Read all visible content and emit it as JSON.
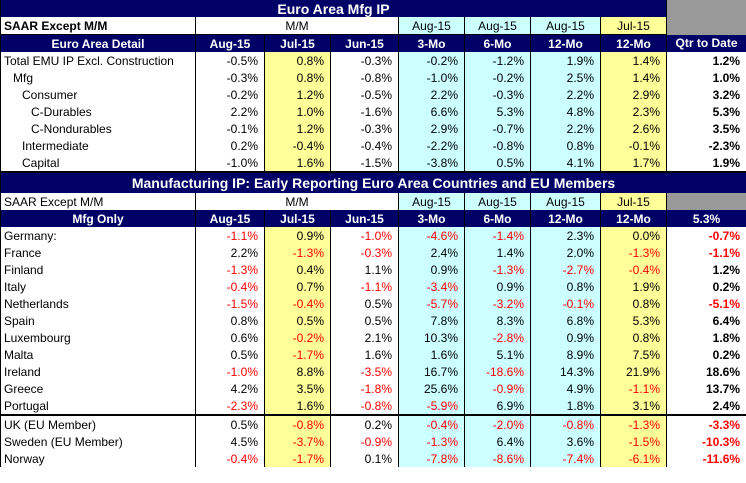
{
  "sec1": {
    "title": "Euro Area Mfg IP",
    "sub_left": "SAAR Except M/M",
    "mm": "M/M",
    "aug15": "Aug-15",
    "jul15": "Jul-15",
    "detail": "Euro Area Detail",
    "cols": [
      "Aug-15",
      "Jul-15",
      "Jun-15",
      "3-Mo",
      "6-Mo",
      "12-Mo",
      "12-Mo",
      "Qtr to Date"
    ],
    "rows": [
      {
        "label": "Total EMU IP Excl. Construction",
        "indent": 0,
        "vals": [
          "-0.5%",
          "0.8%",
          "-0.3%",
          "-0.2%",
          "-1.2%",
          "1.9%",
          "1.4%",
          "1.2%"
        ]
      },
      {
        "label": "Mfg",
        "indent": 1,
        "vals": [
          "-0.3%",
          "0.8%",
          "-0.8%",
          "-1.0%",
          "-0.2%",
          "2.5%",
          "1.4%",
          "1.0%"
        ]
      },
      {
        "label": "Consumer",
        "indent": 2,
        "vals": [
          "-0.2%",
          "1.2%",
          "-0.5%",
          "2.2%",
          "-0.3%",
          "2.2%",
          "2.9%",
          "3.2%"
        ]
      },
      {
        "label": "C-Durables",
        "indent": 3,
        "vals": [
          "2.2%",
          "1.0%",
          "-1.6%",
          "6.6%",
          "5.3%",
          "4.8%",
          "2.3%",
          "5.3%"
        ]
      },
      {
        "label": "C-Nondurables",
        "indent": 3,
        "vals": [
          "-0.1%",
          "1.2%",
          "-0.3%",
          "2.9%",
          "-0.7%",
          "2.2%",
          "2.6%",
          "3.5%"
        ]
      },
      {
        "label": "Intermediate",
        "indent": 2,
        "vals": [
          "0.2%",
          "-0.4%",
          "-0.4%",
          "-2.2%",
          "-0.8%",
          "0.8%",
          "-0.1%",
          "-2.3%"
        ]
      },
      {
        "label": "Capital",
        "indent": 2,
        "vals": [
          "-1.0%",
          "1.6%",
          "-1.5%",
          "-3.8%",
          "0.5%",
          "4.1%",
          "1.7%",
          "1.9%"
        ]
      }
    ]
  },
  "sec2": {
    "title": "Manufacturing IP: Early Reporting Euro Area Countries and EU Members",
    "sub_left": "SAAR Except M/M",
    "mm": "M/M",
    "aug15": "Aug-15",
    "jul15": "Jul-15",
    "only": "Mfg Only",
    "cols": [
      "Aug-15",
      "Jul-15",
      "Jun-15",
      "3-Mo",
      "6-Mo",
      "12-Mo",
      "12-Mo",
      "5.3%"
    ],
    "rows": [
      {
        "label": "Germany:",
        "vals": [
          "-1.1%",
          "0.9%",
          "-1.0%",
          "-4.6%",
          "-1.4%",
          "2.3%",
          "0.0%",
          "-0.7%"
        ]
      },
      {
        "label": "France",
        "vals": [
          "2.2%",
          "-1.3%",
          "-0.3%",
          "2.4%",
          "1.4%",
          "2.0%",
          "-1.3%",
          "-1.1%"
        ]
      },
      {
        "label": "Finland",
        "vals": [
          "-1.3%",
          "0.4%",
          "1.1%",
          "0.9%",
          "-1.3%",
          "-2.7%",
          "-0.4%",
          "1.2%"
        ]
      },
      {
        "label": "Italy",
        "vals": [
          "-0.4%",
          "0.7%",
          "-1.1%",
          "-3.4%",
          "0.9%",
          "0.8%",
          "1.9%",
          "0.2%"
        ]
      },
      {
        "label": "Netherlands",
        "vals": [
          "-1.5%",
          "-0.4%",
          "0.5%",
          "-5.7%",
          "-3.2%",
          "-0.1%",
          "0.8%",
          "-5.1%"
        ]
      },
      {
        "label": "Spain",
        "vals": [
          "0.8%",
          "0.5%",
          "0.5%",
          "7.8%",
          "8.3%",
          "6.8%",
          "5.3%",
          "6.4%"
        ]
      },
      {
        "label": "Luxembourg",
        "vals": [
          "0.6%",
          "-0.2%",
          "2.1%",
          "10.3%",
          "-2.8%",
          "0.9%",
          "0.8%",
          "1.8%"
        ]
      },
      {
        "label": "Malta",
        "vals": [
          "0.5%",
          "-1.7%",
          "1.6%",
          "1.6%",
          "5.1%",
          "8.9%",
          "7.5%",
          "0.2%"
        ]
      },
      {
        "label": "Ireland",
        "vals": [
          "-1.0%",
          "8.8%",
          "-3.5%",
          "16.7%",
          "-18.6%",
          "14.3%",
          "21.9%",
          "18.6%"
        ]
      },
      {
        "label": "Greece",
        "vals": [
          "4.2%",
          "3.5%",
          "-1.8%",
          "25.6%",
          "-0.9%",
          "4.9%",
          "-1.1%",
          "13.7%"
        ]
      },
      {
        "label": "Portugal",
        "vals": [
          "-2.3%",
          "1.6%",
          "-0.8%",
          "-5.9%",
          "6.9%",
          "1.8%",
          "3.1%",
          "2.4%"
        ]
      }
    ],
    "eu_rows": [
      {
        "label": "UK (EU Member)",
        "vals": [
          "0.5%",
          "-0.8%",
          "0.2%",
          "-0.4%",
          "-2.0%",
          "-0.8%",
          "-1.3%",
          "-3.3%"
        ]
      },
      {
        "label": "Sweden (EU Member)",
        "vals": [
          "4.5%",
          "-3.7%",
          "-0.9%",
          "-1.3%",
          "6.4%",
          "3.6%",
          "-1.5%",
          "-10.3%"
        ]
      },
      {
        "label": "Norway",
        "vals": [
          "-0.4%",
          "-1.7%",
          "0.1%",
          "-7.8%",
          "-8.6%",
          "-7.4%",
          "-6.1%",
          "-11.6%"
        ]
      }
    ]
  },
  "colors": {
    "navy": "#000066",
    "cyan": "#ccffff",
    "yellow": "#ffff99",
    "gray": "#999999",
    "negative": "#ff0000"
  }
}
